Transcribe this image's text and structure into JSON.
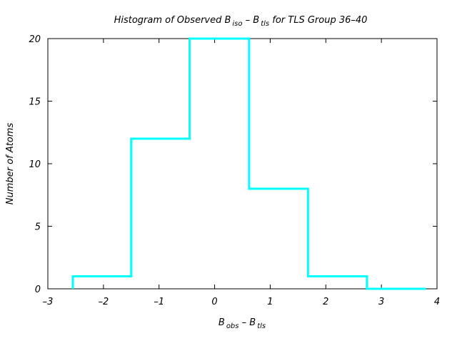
{
  "chart_data": {
    "type": "bar",
    "title": {
      "prefix": "Histogram of Observed B",
      "sub1": "iso",
      "middle": " – B",
      "sub2": "tls",
      "suffix": " for TLS Group 36–40"
    },
    "xlabel": {
      "base1": "B",
      "sub1": "obs",
      "middle": " – B",
      "sub2": "tls"
    },
    "ylabel": "Number of Atoms",
    "xlim": [
      -3,
      4
    ],
    "ylim": [
      0,
      20
    ],
    "xticks": [
      -3,
      -2,
      -1,
      0,
      1,
      2,
      3,
      4
    ],
    "xtick_labels": [
      "–3",
      "–2",
      "–1",
      "0",
      "1",
      "2",
      "3",
      "4"
    ],
    "yticks": [
      0,
      5,
      10,
      15,
      20
    ],
    "ytick_labels": [
      "0",
      "5",
      "10",
      "15",
      "20"
    ],
    "bins": [
      {
        "start": -2.55,
        "end": -1.5,
        "count": 1
      },
      {
        "start": -1.5,
        "end": -0.45,
        "count": 12
      },
      {
        "start": -0.45,
        "end": 0.62,
        "count": 20
      },
      {
        "start": 0.62,
        "end": 1.68,
        "count": 8
      },
      {
        "start": 1.68,
        "end": 2.74,
        "count": 1
      },
      {
        "start": 2.74,
        "end": 3.8,
        "count": 0
      }
    ],
    "series_color": "#00ffff",
    "grid": false,
    "legend": "none"
  }
}
